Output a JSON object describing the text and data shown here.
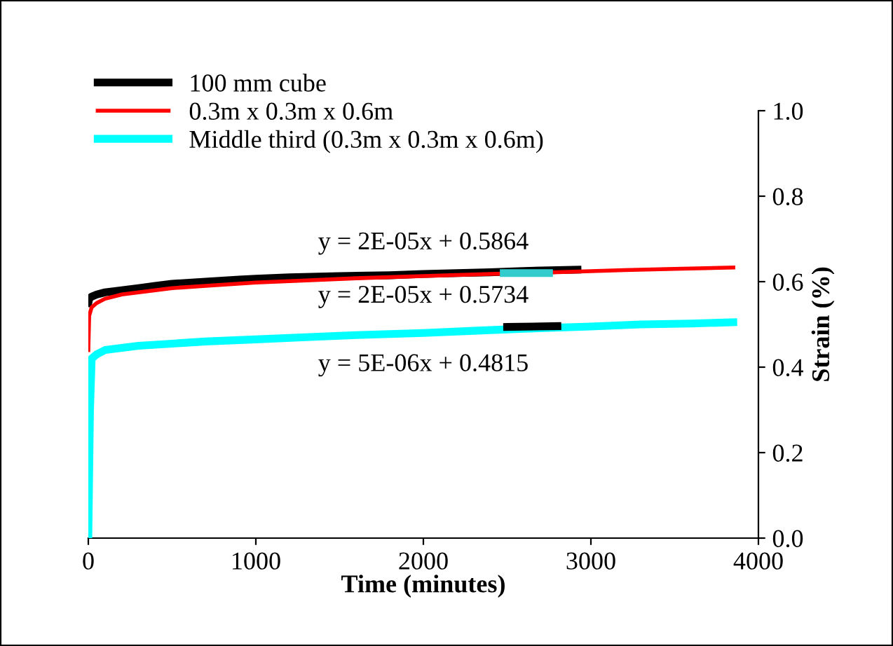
{
  "chart_data": {
    "type": "line",
    "xlabel": "Time (minutes)",
    "ylabel": "Strain (%)",
    "xlim": [
      0,
      4000
    ],
    "ylim": [
      0,
      1.0
    ],
    "xticks": [
      0,
      1000,
      2000,
      3000,
      4000
    ],
    "yticks": [
      {
        "value": 0,
        "label": "0.0"
      },
      0.2,
      0.4,
      0.6,
      0.8,
      {
        "value": 1.0,
        "label": "1.0"
      }
    ],
    "grid": false,
    "legend": "top left",
    "marker": "none",
    "line_style": "solid",
    "series": [
      {
        "name": "100 mm cube",
        "color": "#000000",
        "x": [
          0,
          5,
          20,
          50,
          100,
          200,
          300,
          400,
          500,
          700,
          900,
          1000,
          1200,
          1500,
          1800,
          2000,
          2200,
          2400,
          2600,
          2800,
          2920
        ],
        "values": [
          0.55,
          0.56,
          0.565,
          0.57,
          0.575,
          0.58,
          0.585,
          0.59,
          0.595,
          0.6,
          0.605,
          0.607,
          0.61,
          0.613,
          0.615,
          0.618,
          0.62,
          0.622,
          0.625,
          0.627,
          0.628
        ]
      },
      {
        "name": "0.3m x 0.3m x 0.6m",
        "color": "#ff0000",
        "x": [
          0,
          5,
          20,
          50,
          100,
          200,
          300,
          500,
          700,
          1000,
          1300,
          1600,
          2000,
          2400,
          2800,
          3200,
          3500,
          3850
        ],
        "values": [
          0.44,
          0.52,
          0.54,
          0.55,
          0.56,
          0.57,
          0.575,
          0.585,
          0.59,
          0.598,
          0.603,
          0.608,
          0.613,
          0.618,
          0.622,
          0.627,
          0.63,
          0.633
        ]
      },
      {
        "name": "Middle third (0.3m x 0.3m x 0.6m)",
        "color": "#00ffff",
        "x": [
          0,
          10,
          20,
          50,
          100,
          200,
          300,
          500,
          700,
          1000,
          1300,
          1600,
          2000,
          2300,
          2600,
          3000,
          3300,
          3600,
          3850
        ],
        "values": [
          0.0,
          0.3,
          0.42,
          0.43,
          0.44,
          0.445,
          0.45,
          0.455,
          0.46,
          0.465,
          0.47,
          0.475,
          0.48,
          0.485,
          0.49,
          0.495,
          0.5,
          0.502,
          0.505
        ]
      },
      {
        "color": "#000000",
        "x": [
          2500,
          2800
        ],
        "values": [
          0.494,
          0.496
        ]
      },
      {
        "color": "#33cccc",
        "x": [
          2480,
          2750
        ],
        "values": [
          0.62,
          0.62
        ]
      }
    ],
    "annotations": [
      "y = 2E-05x + 0.5864",
      "y = 2E-05x + 0.5734",
      "y = 5E-06x + 0.4815"
    ]
  }
}
